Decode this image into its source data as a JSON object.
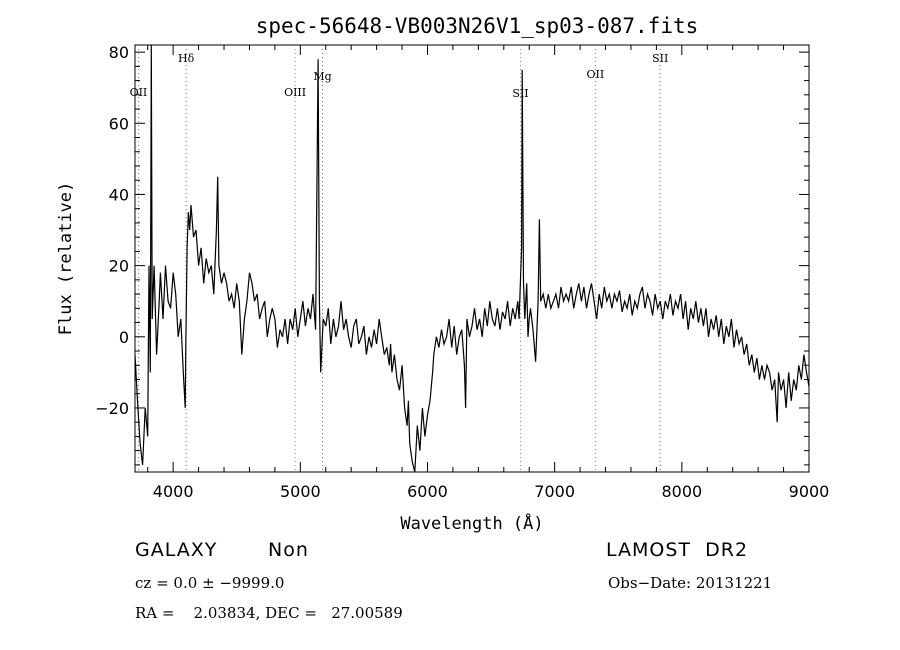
{
  "chart_data": {
    "type": "line",
    "title": "spec-56648-VB003N26V1_sp03-087.fits",
    "xlabel": "Wavelength (Å)",
    "ylabel": "Flux (relative)",
    "xlim": [
      3700,
      9000
    ],
    "ylim": [
      -38,
      82
    ],
    "x_ticks": [
      4000,
      5000,
      6000,
      7000,
      8000,
      9000
    ],
    "y_ticks": [
      -20,
      0,
      20,
      40,
      60,
      80
    ],
    "y_tick_labels": [
      "−20",
      "0",
      "20",
      "40",
      "60",
      "80"
    ],
    "grid": false,
    "series": [
      {
        "color": "#000000",
        "points": [
          [
            3700,
            -5
          ],
          [
            3720,
            -18
          ],
          [
            3740,
            -30
          ],
          [
            3760,
            -36
          ],
          [
            3780,
            -20
          ],
          [
            3800,
            -28
          ],
          [
            3810,
            20
          ],
          [
            3820,
            -10
          ],
          [
            3828,
            82
          ],
          [
            3835,
            5
          ],
          [
            3850,
            20
          ],
          [
            3870,
            -5
          ],
          [
            3890,
            10
          ],
          [
            3900,
            18
          ],
          [
            3920,
            5
          ],
          [
            3940,
            20
          ],
          [
            3960,
            10
          ],
          [
            3980,
            8
          ],
          [
            4000,
            18
          ],
          [
            4020,
            12
          ],
          [
            4040,
            0
          ],
          [
            4060,
            5
          ],
          [
            4080,
            -10
          ],
          [
            4095,
            -20
          ],
          [
            4100,
            0
          ],
          [
            4110,
            25
          ],
          [
            4120,
            35
          ],
          [
            4130,
            30
          ],
          [
            4140,
            37
          ],
          [
            4160,
            28
          ],
          [
            4180,
            30
          ],
          [
            4200,
            20
          ],
          [
            4220,
            25
          ],
          [
            4240,
            15
          ],
          [
            4260,
            22
          ],
          [
            4280,
            18
          ],
          [
            4300,
            20
          ],
          [
            4320,
            12
          ],
          [
            4340,
            30
          ],
          [
            4350,
            45
          ],
          [
            4360,
            20
          ],
          [
            4380,
            15
          ],
          [
            4400,
            18
          ],
          [
            4420,
            15
          ],
          [
            4440,
            10
          ],
          [
            4460,
            12
          ],
          [
            4480,
            8
          ],
          [
            4500,
            15
          ],
          [
            4520,
            10
          ],
          [
            4540,
            -5
          ],
          [
            4560,
            5
          ],
          [
            4580,
            10
          ],
          [
            4600,
            18
          ],
          [
            4620,
            15
          ],
          [
            4640,
            10
          ],
          [
            4660,
            12
          ],
          [
            4680,
            5
          ],
          [
            4700,
            8
          ],
          [
            4720,
            10
          ],
          [
            4740,
            0
          ],
          [
            4760,
            5
          ],
          [
            4780,
            8
          ],
          [
            4800,
            5
          ],
          [
            4820,
            -3
          ],
          [
            4840,
            2
          ],
          [
            4860,
            0
          ],
          [
            4880,
            5
          ],
          [
            4900,
            -2
          ],
          [
            4920,
            5
          ],
          [
            4940,
            2
          ],
          [
            4960,
            8
          ],
          [
            4980,
            0
          ],
          [
            5000,
            5
          ],
          [
            5020,
            10
          ],
          [
            5040,
            3
          ],
          [
            5060,
            8
          ],
          [
            5080,
            5
          ],
          [
            5100,
            12
          ],
          [
            5120,
            2
          ],
          [
            5135,
            60
          ],
          [
            5140,
            78
          ],
          [
            5150,
            10
          ],
          [
            5160,
            -10
          ],
          [
            5180,
            5
          ],
          [
            5200,
            3
          ],
          [
            5220,
            8
          ],
          [
            5240,
            -2
          ],
          [
            5260,
            5
          ],
          [
            5280,
            0
          ],
          [
            5300,
            3
          ],
          [
            5320,
            10
          ],
          [
            5340,
            2
          ],
          [
            5360,
            5
          ],
          [
            5380,
            0
          ],
          [
            5400,
            -3
          ],
          [
            5420,
            3
          ],
          [
            5440,
            5
          ],
          [
            5460,
            -2
          ],
          [
            5480,
            0
          ],
          [
            5500,
            3
          ],
          [
            5520,
            -5
          ],
          [
            5540,
            0
          ],
          [
            5560,
            -3
          ],
          [
            5580,
            2
          ],
          [
            5600,
            -2
          ],
          [
            5620,
            5
          ],
          [
            5640,
            0
          ],
          [
            5660,
            -5
          ],
          [
            5680,
            -3
          ],
          [
            5700,
            -8
          ],
          [
            5710,
            -2
          ],
          [
            5720,
            -10
          ],
          [
            5740,
            -5
          ],
          [
            5760,
            -12
          ],
          [
            5780,
            -15
          ],
          [
            5800,
            -8
          ],
          [
            5820,
            -20
          ],
          [
            5840,
            -25
          ],
          [
            5850,
            -18
          ],
          [
            5860,
            -30
          ],
          [
            5880,
            -35
          ],
          [
            5900,
            -38
          ],
          [
            5920,
            -25
          ],
          [
            5940,
            -32
          ],
          [
            5960,
            -20
          ],
          [
            5980,
            -28
          ],
          [
            6000,
            -22
          ],
          [
            6020,
            -18
          ],
          [
            6040,
            -10
          ],
          [
            6050,
            -5
          ],
          [
            6070,
            0
          ],
          [
            6090,
            -3
          ],
          [
            6110,
            2
          ],
          [
            6130,
            -2
          ],
          [
            6150,
            0
          ],
          [
            6170,
            5
          ],
          [
            6190,
            -3
          ],
          [
            6210,
            3
          ],
          [
            6230,
            -5
          ],
          [
            6250,
            0
          ],
          [
            6270,
            2
          ],
          [
            6290,
            -8
          ],
          [
            6300,
            -20
          ],
          [
            6310,
            5
          ],
          [
            6330,
            0
          ],
          [
            6350,
            3
          ],
          [
            6370,
            8
          ],
          [
            6390,
            2
          ],
          [
            6410,
            5
          ],
          [
            6430,
            0
          ],
          [
            6450,
            8
          ],
          [
            6470,
            3
          ],
          [
            6490,
            10
          ],
          [
            6510,
            5
          ],
          [
            6530,
            3
          ],
          [
            6550,
            8
          ],
          [
            6570,
            2
          ],
          [
            6590,
            7
          ],
          [
            6610,
            5
          ],
          [
            6630,
            10
          ],
          [
            6650,
            3
          ],
          [
            6670,
            8
          ],
          [
            6690,
            5
          ],
          [
            6710,
            10
          ],
          [
            6720,
            5
          ],
          [
            6740,
            25
          ],
          [
            6745,
            75
          ],
          [
            6755,
            15
          ],
          [
            6765,
            5
          ],
          [
            6780,
            15
          ],
          [
            6790,
            0
          ],
          [
            6800,
            5
          ],
          [
            6810,
            8
          ],
          [
            6830,
            2
          ],
          [
            6850,
            -7
          ],
          [
            6870,
            10
          ],
          [
            6880,
            33
          ],
          [
            6890,
            10
          ],
          [
            6910,
            12
          ],
          [
            6930,
            8
          ],
          [
            6950,
            12
          ],
          [
            6970,
            8
          ],
          [
            6990,
            10
          ],
          [
            7010,
            12
          ],
          [
            7030,
            8
          ],
          [
            7050,
            14
          ],
          [
            7070,
            10
          ],
          [
            7090,
            12
          ],
          [
            7110,
            10
          ],
          [
            7130,
            14
          ],
          [
            7150,
            8
          ],
          [
            7170,
            12
          ],
          [
            7190,
            15
          ],
          [
            7210,
            10
          ],
          [
            7230,
            14
          ],
          [
            7250,
            8
          ],
          [
            7270,
            12
          ],
          [
            7290,
            15
          ],
          [
            7310,
            10
          ],
          [
            7330,
            5
          ],
          [
            7350,
            12
          ],
          [
            7370,
            8
          ],
          [
            7390,
            14
          ],
          [
            7410,
            10
          ],
          [
            7430,
            12
          ],
          [
            7450,
            8
          ],
          [
            7470,
            12
          ],
          [
            7490,
            10
          ],
          [
            7510,
            13
          ],
          [
            7530,
            7
          ],
          [
            7550,
            10
          ],
          [
            7570,
            8
          ],
          [
            7590,
            12
          ],
          [
            7610,
            6
          ],
          [
            7630,
            10
          ],
          [
            7650,
            8
          ],
          [
            7670,
            12
          ],
          [
            7690,
            14
          ],
          [
            7710,
            8
          ],
          [
            7730,
            12
          ],
          [
            7750,
            10
          ],
          [
            7770,
            6
          ],
          [
            7790,
            12
          ],
          [
            7810,
            8
          ],
          [
            7830,
            10
          ],
          [
            7850,
            5
          ],
          [
            7870,
            10
          ],
          [
            7890,
            8
          ],
          [
            7910,
            12
          ],
          [
            7930,
            6
          ],
          [
            7950,
            10
          ],
          [
            7970,
            8
          ],
          [
            7990,
            12
          ],
          [
            8010,
            5
          ],
          [
            8030,
            10
          ],
          [
            8050,
            2
          ],
          [
            8070,
            8
          ],
          [
            8090,
            5
          ],
          [
            8110,
            10
          ],
          [
            8130,
            4
          ],
          [
            8150,
            8
          ],
          [
            8170,
            3
          ],
          [
            8190,
            8
          ],
          [
            8210,
            0
          ],
          [
            8230,
            5
          ],
          [
            8250,
            2
          ],
          [
            8270,
            6
          ],
          [
            8290,
            0
          ],
          [
            8310,
            5
          ],
          [
            8330,
            -2
          ],
          [
            8350,
            3
          ],
          [
            8370,
            0
          ],
          [
            8390,
            5
          ],
          [
            8410,
            -3
          ],
          [
            8430,
            2
          ],
          [
            8450,
            -2
          ],
          [
            8470,
            0
          ],
          [
            8490,
            -5
          ],
          [
            8510,
            -2
          ],
          [
            8530,
            -8
          ],
          [
            8550,
            -5
          ],
          [
            8570,
            -10
          ],
          [
            8590,
            -6
          ],
          [
            8610,
            -12
          ],
          [
            8630,
            -8
          ],
          [
            8650,
            -12
          ],
          [
            8670,
            -8
          ],
          [
            8690,
            -10
          ],
          [
            8710,
            -15
          ],
          [
            8730,
            -12
          ],
          [
            8750,
            -24
          ],
          [
            8760,
            -10
          ],
          [
            8780,
            -15
          ],
          [
            8800,
            -12
          ],
          [
            8820,
            -20
          ],
          [
            8840,
            -10
          ],
          [
            8860,
            -18
          ],
          [
            8880,
            -12
          ],
          [
            8900,
            -15
          ],
          [
            8920,
            -8
          ],
          [
            8940,
            -12
          ],
          [
            8960,
            -5
          ],
          [
            8980,
            -10
          ],
          [
            9000,
            -14
          ]
        ]
      }
    ],
    "annotations": [
      {
        "label": "OII",
        "x": 3727,
        "line_color": "#cc6666"
      },
      {
        "label": "Hδ",
        "x": 4102,
        "line_color": "#666666"
      },
      {
        "label": "OIII",
        "x": 4959,
        "line_color": "#cc6666"
      },
      {
        "label": "Mg",
        "x": 5175,
        "line_color": "#666666"
      },
      {
        "label": "SII",
        "x": 6731,
        "line_color": "#cc6666"
      },
      {
        "label": "OII",
        "x": 7320,
        "line_color": "#cc6666"
      },
      {
        "label": "SII",
        "x": 7830,
        "line_color": "#666666"
      }
    ]
  },
  "info": {
    "object_class": "GALAXY",
    "subclass": "Non",
    "survey": "LAMOST  DR2",
    "cz": "cz = 0.0 ± −9999.0",
    "obs_date": "Obs−Date: 20131221",
    "coords": "RA =    2.03834, DEC =   27.00589"
  }
}
